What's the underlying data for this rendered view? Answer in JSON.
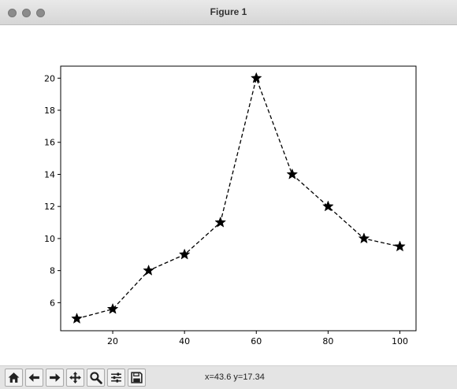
{
  "window": {
    "title": "Figure 1"
  },
  "toolbar": {
    "buttons": [
      {
        "icon": "home-icon"
      },
      {
        "icon": "back-arrow-icon"
      },
      {
        "icon": "forward-arrow-icon"
      },
      {
        "icon": "pan-icon"
      },
      {
        "icon": "zoom-icon"
      },
      {
        "icon": "configure-subplots-icon"
      },
      {
        "icon": "save-icon"
      }
    ],
    "coords": "x=43.6 y=17.34"
  },
  "chart_data": {
    "type": "line",
    "line_style": "dashed",
    "marker": "star",
    "color": "#000000",
    "x": [
      10,
      20,
      30,
      40,
      50,
      60,
      70,
      80,
      90,
      100
    ],
    "y": [
      5,
      5.6,
      8,
      9,
      11,
      20,
      14,
      12,
      10,
      9.5
    ],
    "xticks": [
      20,
      40,
      60,
      80,
      100
    ],
    "yticks": [
      6,
      8,
      10,
      12,
      14,
      16,
      18,
      20
    ],
    "xlim": [
      5.5,
      104.5
    ],
    "ylim": [
      4.25,
      20.75
    ],
    "title": "",
    "xlabel": "",
    "ylabel": "",
    "grid": false
  }
}
